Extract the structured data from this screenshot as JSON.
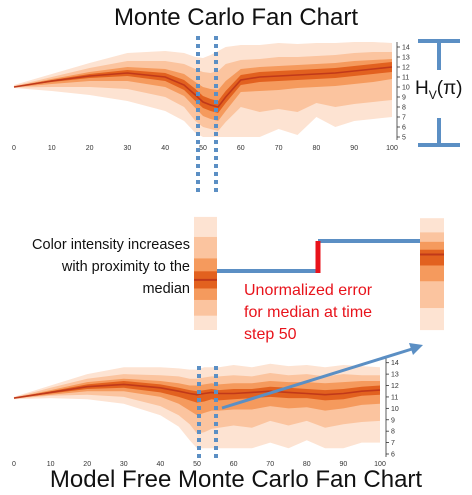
{
  "titles": {
    "top": "Monte Carlo Fan Chart",
    "bottom": "Model Free Monte Carlo Fan Chart"
  },
  "annotations": {
    "color_intensity": [
      "Color intensity increases",
      "with proximity to the",
      "median"
    ],
    "error": [
      "Unormalized error",
      "for median at time",
      "step 50"
    ],
    "hv_main": "H",
    "hv_sub": "V",
    "hv_paren": "(π)"
  },
  "colors": {
    "band_light": "#fde3d2",
    "band_mid1": "#fbc49f",
    "band_mid2": "#f59a5d",
    "band_dark": "#e2611f",
    "median": "#c0391a",
    "guide": "#5b8fc4",
    "error": "#e8131b"
  },
  "chart_data": [
    {
      "type": "area",
      "title": "Monte Carlo Fan Chart",
      "xlim": [
        0,
        100
      ],
      "ylim": [
        5,
        14.5
      ],
      "x_ticks": [
        0,
        10,
        20,
        30,
        40,
        50,
        60,
        70,
        80,
        90,
        100
      ],
      "y_ticks": [
        5,
        6,
        7,
        8,
        9,
        10,
        11,
        12,
        13,
        14
      ],
      "x": [
        0,
        10,
        20,
        30,
        40,
        45,
        48,
        50,
        52,
        54,
        56,
        60,
        65,
        70,
        75,
        80,
        85,
        90,
        95,
        100
      ],
      "series": [
        {
          "values": [
            10.0,
            10.6,
            11.1,
            11.4,
            11.0,
            10.2,
            9.2,
            8.5,
            8.2,
            8.0,
            9.0,
            10.7,
            11.0,
            11.1,
            11.2,
            11.3,
            11.4,
            11.6,
            11.8,
            12.0
          ]
        }
      ],
      "bands": [
        {
          "level": "p95",
          "upper": [
            10.2,
            11.3,
            12.4,
            13.4,
            13.6,
            13.4,
            13.0,
            12.9,
            13.2,
            13.6,
            14.0,
            14.2,
            14.2,
            14.4,
            14.3,
            14.4,
            14.4,
            14.5,
            14.5,
            14.4
          ],
          "lower": [
            9.9,
            9.6,
            9.2,
            8.6,
            7.6,
            6.6,
            5.4,
            5.0,
            5.0,
            5.0,
            5.0,
            5.0,
            5.0,
            5.8,
            5.2,
            7.0,
            6.0,
            6.6,
            6.8,
            7.0
          ]
        },
        {
          "level": "p80",
          "upper": [
            10.1,
            11.0,
            11.9,
            12.6,
            12.6,
            12.3,
            11.8,
            11.5,
            11.4,
            11.6,
            12.3,
            12.7,
            12.8,
            13.0,
            13.0,
            13.1,
            13.2,
            13.4,
            13.5,
            13.5
          ],
          "lower": [
            9.95,
            10.0,
            10.0,
            9.8,
            9.0,
            8.0,
            6.6,
            6.0,
            5.8,
            5.6,
            6.5,
            8.0,
            7.5,
            7.8,
            7.5,
            8.4,
            8.0,
            8.3,
            8.5,
            8.7
          ]
        },
        {
          "level": "p60",
          "upper": [
            10.05,
            10.8,
            11.5,
            12.0,
            11.8,
            11.3,
            10.5,
            10.0,
            9.8,
            9.7,
            10.6,
            11.8,
            12.0,
            12.1,
            12.2,
            12.3,
            12.4,
            12.6,
            12.7,
            12.8
          ],
          "lower": [
            9.98,
            10.3,
            10.6,
            10.6,
            10.0,
            9.1,
            7.9,
            7.1,
            6.8,
            6.6,
            7.6,
            9.5,
            9.6,
            9.7,
            9.9,
            10.0,
            10.1,
            10.3,
            10.5,
            10.8
          ]
        },
        {
          "level": "p40",
          "upper": [
            10.02,
            10.7,
            11.3,
            11.7,
            11.4,
            10.7,
            9.8,
            9.1,
            8.8,
            8.6,
            9.6,
            11.2,
            11.5,
            11.6,
            11.7,
            11.8,
            11.9,
            12.1,
            12.3,
            12.5
          ],
          "lower": [
            10.0,
            10.5,
            10.9,
            11.1,
            10.6,
            9.7,
            8.6,
            7.9,
            7.6,
            7.4,
            8.4,
            10.2,
            10.5,
            10.6,
            10.7,
            10.8,
            10.9,
            11.1,
            11.3,
            11.5
          ]
        }
      ]
    },
    {
      "type": "area",
      "title": "Model Free Monte Carlo Fan Chart",
      "xlim": [
        0,
        100
      ],
      "ylim": [
        6,
        14.5
      ],
      "x_ticks": [
        0,
        10,
        20,
        30,
        40,
        50,
        60,
        70,
        80,
        90,
        100
      ],
      "y_ticks": [
        6,
        7,
        8,
        9,
        10,
        11,
        12,
        13,
        14
      ],
      "x": [
        0,
        10,
        20,
        30,
        40,
        45,
        48,
        50,
        52,
        54,
        56,
        60,
        65,
        70,
        75,
        80,
        85,
        90,
        95,
        100
      ],
      "series": [
        {
          "values": [
            10.9,
            11.4,
            11.9,
            12.1,
            11.8,
            11.5,
            11.3,
            11.2,
            11.3,
            11.4,
            11.3,
            11.3,
            11.4,
            11.5,
            11.4,
            11.3,
            11.2,
            11.3,
            11.5,
            11.6
          ]
        }
      ],
      "bands": [
        {
          "level": "p95",
          "upper": [
            11.0,
            12.0,
            13.0,
            13.6,
            13.6,
            13.5,
            13.4,
            13.4,
            13.6,
            13.6,
            13.6,
            13.8,
            13.6,
            13.9,
            13.7,
            13.8,
            13.6,
            13.8,
            13.7,
            13.6
          ],
          "lower": [
            10.8,
            10.9,
            10.8,
            10.4,
            9.4,
            8.4,
            7.2,
            6.5,
            6.5,
            6.5,
            6.5,
            6.5,
            6.5,
            7.0,
            6.5,
            7.2,
            6.5,
            6.5,
            7.0,
            7.0
          ]
        },
        {
          "level": "p80",
          "upper": [
            10.95,
            11.8,
            12.6,
            13.0,
            12.9,
            12.8,
            12.6,
            12.6,
            12.7,
            12.8,
            12.8,
            12.9,
            12.8,
            13.1,
            12.9,
            13.0,
            12.8,
            13.0,
            12.9,
            12.9
          ],
          "lower": [
            10.85,
            11.1,
            11.2,
            11.0,
            10.2,
            9.4,
            8.6,
            7.8,
            7.9,
            8.2,
            8.3,
            8.5,
            8.3,
            8.9,
            8.5,
            8.9,
            8.3,
            8.6,
            8.8,
            8.9
          ]
        },
        {
          "level": "p60",
          "upper": [
            10.92,
            11.6,
            12.3,
            12.6,
            12.4,
            12.2,
            12.0,
            12.0,
            12.1,
            12.2,
            12.1,
            12.2,
            12.2,
            12.4,
            12.3,
            12.3,
            12.2,
            12.3,
            12.4,
            12.4
          ],
          "lower": [
            10.88,
            11.2,
            11.5,
            11.5,
            11.0,
            10.4,
            9.8,
            9.4,
            9.6,
            9.8,
            9.8,
            9.9,
            9.9,
            10.2,
            10.0,
            10.1,
            9.8,
            10.0,
            10.3,
            10.4
          ]
        },
        {
          "level": "p40",
          "upper": [
            10.91,
            11.5,
            12.1,
            12.4,
            12.1,
            11.8,
            11.6,
            11.5,
            11.6,
            11.7,
            11.6,
            11.7,
            11.7,
            11.9,
            11.8,
            11.7,
            11.6,
            11.7,
            11.9,
            12.0
          ],
          "lower": [
            10.89,
            11.3,
            11.7,
            11.8,
            11.4,
            11.0,
            10.7,
            10.5,
            10.6,
            10.8,
            10.7,
            10.8,
            10.9,
            11.0,
            10.9,
            10.9,
            10.7,
            10.8,
            11.1,
            11.2
          ]
        }
      ]
    }
  ],
  "slices": {
    "left": {
      "time_step": 50
    },
    "right": {
      "time_step": 52
    }
  }
}
